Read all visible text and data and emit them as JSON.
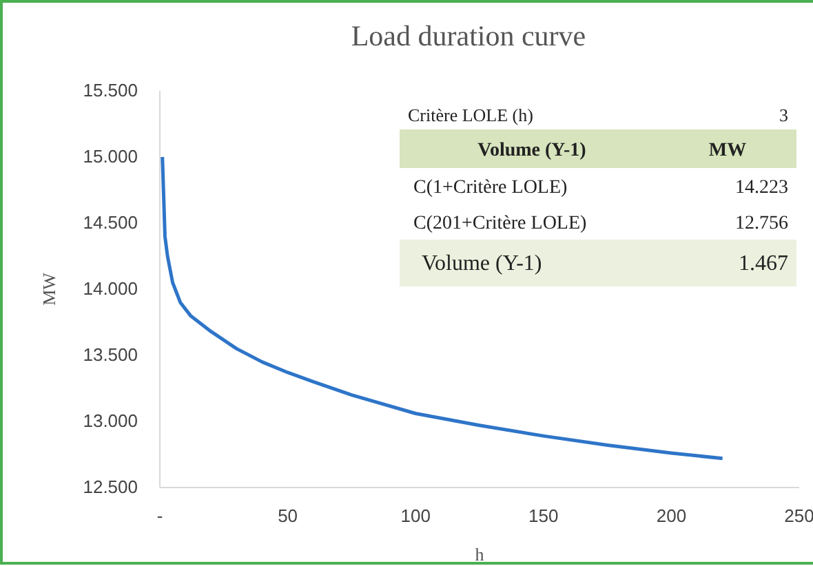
{
  "chart_data": {
    "type": "line",
    "title": "Load duration curve",
    "xlabel": "h",
    "ylabel": "MW",
    "x": [
      1,
      2,
      3,
      5,
      8,
      12,
      20,
      30,
      40,
      50,
      60,
      75,
      100,
      125,
      150,
      175,
      200,
      220
    ],
    "series": [
      {
        "color": "#2e75c8",
        "values": [
          15000,
          14400,
          14250,
          14050,
          13900,
          13800,
          13680,
          13550,
          13450,
          13370,
          13300,
          13200,
          13060,
          12970,
          12890,
          12820,
          12760,
          12720
        ]
      }
    ],
    "xlim": [
      0,
      250
    ],
    "xticks": [
      {
        "value": 0,
        "label": "-"
      },
      50,
      100,
      150,
      200,
      250
    ],
    "ylim": [
      12500,
      15500
    ],
    "yticks": [
      {
        "value": 12500,
        "label": "12.500"
      },
      {
        "value": 13000,
        "label": "13.000"
      },
      {
        "value": 13500,
        "label": "13.500"
      },
      {
        "value": 14000,
        "label": "14.000"
      },
      {
        "value": 14500,
        "label": "14.500"
      },
      {
        "value": 15000,
        "label": "15.000"
      },
      {
        "value": 15500,
        "label": "15.500"
      }
    ],
    "grid": false,
    "marker": "none",
    "line_style": "solid",
    "annotations": [
      "Critère LOLE (h)",
      "3",
      "Volume (Y-1)",
      "MW",
      "C(1+Critère LOLE)",
      "14.223",
      "C(201+Critère LOLE)",
      "12.756",
      "Volume (Y-1)",
      "1.467"
    ]
  }
}
